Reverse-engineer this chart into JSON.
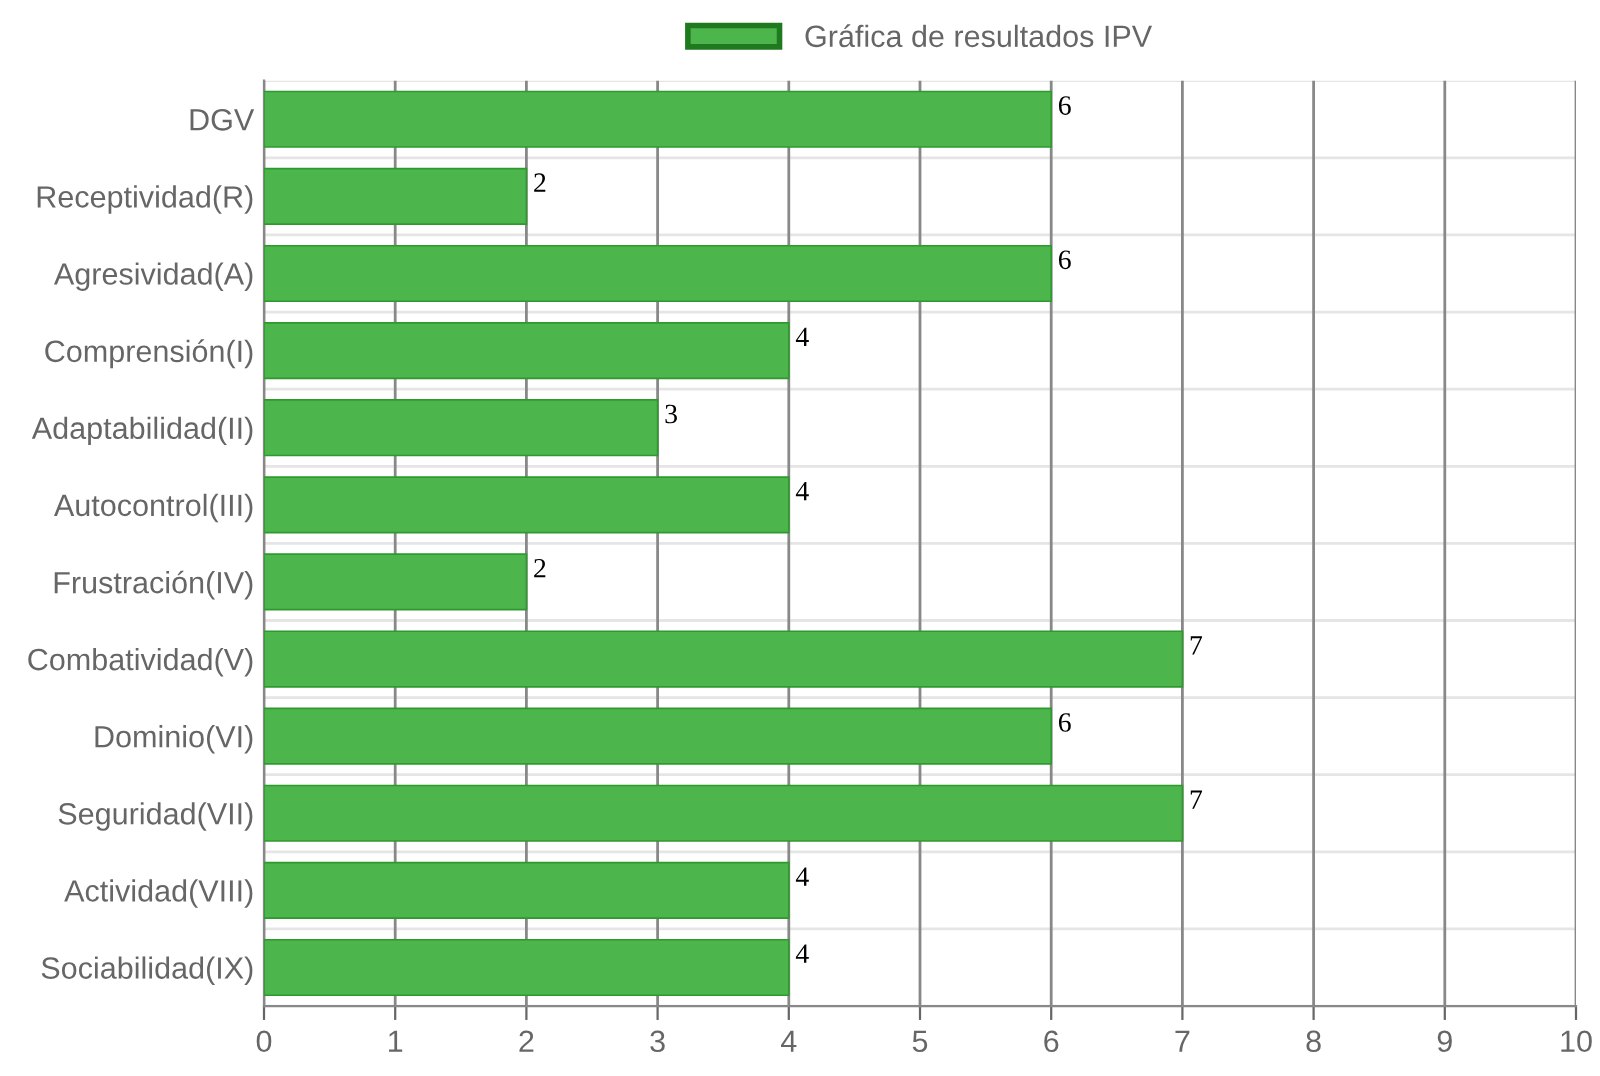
{
  "chart_data": {
    "type": "bar",
    "orientation": "horizontal",
    "categories": [
      "DGV",
      "Receptividad(R)",
      "Agresividad(A)",
      "Comprensión(I)",
      "Adaptabilidad(II)",
      "Autocontrol(III)",
      "Frustración(IV)",
      "Combatividad(V)",
      "Dominio(VI)",
      "Seguridad(VII)",
      "Actividad(VIII)",
      "Sociabilidad(IX)"
    ],
    "series": [
      {
        "name": "Gráfica de resultados IPV",
        "color": "#4cb54c",
        "values": [
          6,
          2,
          6,
          4,
          3,
          4,
          2,
          7,
          6,
          7,
          4,
          4
        ]
      }
    ],
    "xlim": [
      0,
      10
    ],
    "xticks": [
      0,
      1,
      2,
      3,
      4,
      5,
      6,
      7,
      8,
      9,
      10
    ],
    "grid": true,
    "legend": "top",
    "data_labels": true
  }
}
